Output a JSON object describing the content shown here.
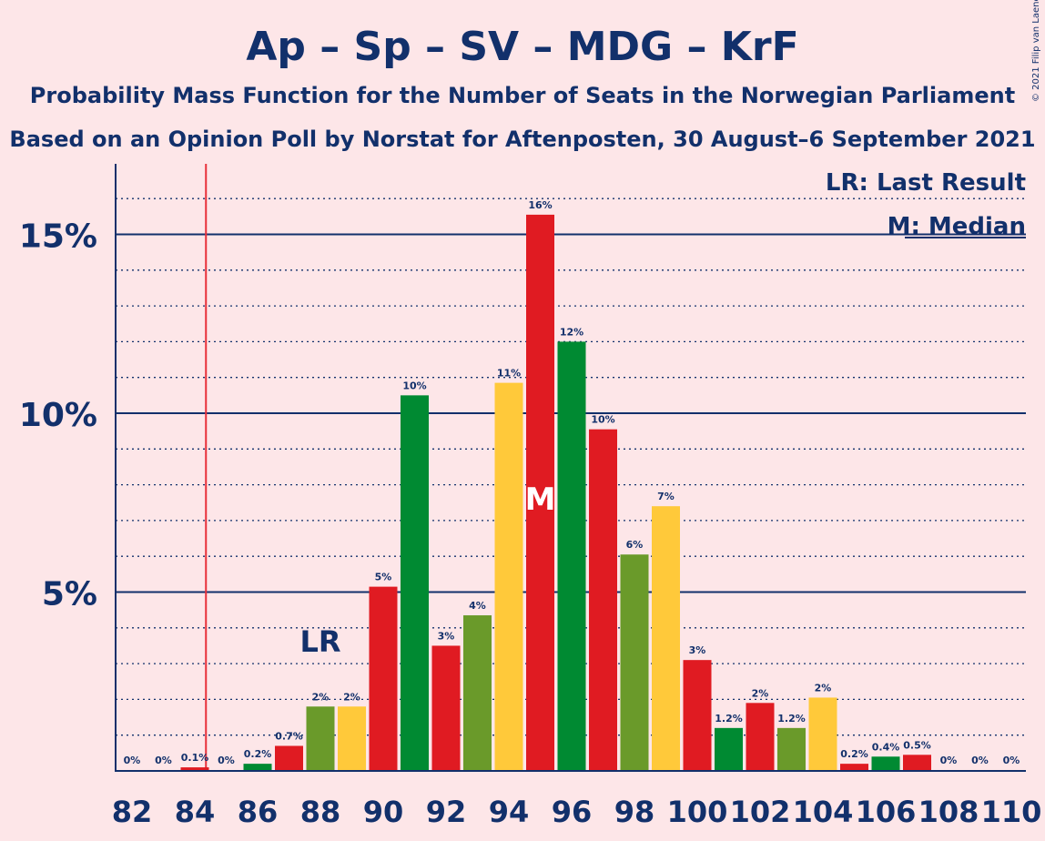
{
  "copyright": "© 2021 Filip van Laenen",
  "legend": {
    "lr": "LR: Last Result",
    "median": "M: Median"
  },
  "markers": {
    "last_result_label": "LR",
    "median_label": "M"
  },
  "colors": {
    "background": "#fde6e8",
    "axis": "#12306b",
    "last_result_line": "#e8303a",
    "red": "#e01b22",
    "green": "#008a32",
    "olive": "#6a9a2a",
    "yellow": "#ffc93a"
  },
  "chart_data": {
    "type": "bar",
    "title": "Ap – Sp – SV – MDG – KrF",
    "subtitle": "Probability Mass Function for the Number of Seats in the Norwegian Parliament",
    "subtitle2": "Based on an Opinion Poll by Norstat for Aftenposten, 30 August–6 September 2021",
    "xlabel": "",
    "ylabel": "",
    "x_ticks": [
      "82",
      "84",
      "86",
      "88",
      "90",
      "92",
      "94",
      "96",
      "98",
      "100",
      "102",
      "104",
      "106",
      "108",
      "110"
    ],
    "y_ticks": [
      "5%",
      "10%",
      "15%"
    ],
    "ylim": [
      0,
      17
    ],
    "grid": true,
    "legend_position": "top-right",
    "last_result": 85,
    "median": 95,
    "bars": [
      {
        "seats": 82,
        "value": 0,
        "label": "0%",
        "color": "red"
      },
      {
        "seats": 83,
        "value": 0,
        "label": "0%",
        "color": "red"
      },
      {
        "seats": 84,
        "value": 0.1,
        "label": "0.1%",
        "color": "red"
      },
      {
        "seats": 85,
        "value": 0,
        "label": "0%",
        "color": "red"
      },
      {
        "seats": 86,
        "value": 0.2,
        "label": "0.2%",
        "color": "green"
      },
      {
        "seats": 87,
        "value": 0.7,
        "label": "0.7%",
        "color": "red"
      },
      {
        "seats": 88,
        "value": 1.8,
        "label": "2%",
        "color": "olive"
      },
      {
        "seats": 89,
        "value": 1.8,
        "label": "2%",
        "color": "yellow"
      },
      {
        "seats": 90,
        "value": 5.15,
        "label": "5%",
        "color": "red"
      },
      {
        "seats": 91,
        "value": 10.5,
        "label": "10%",
        "color": "green"
      },
      {
        "seats": 92,
        "value": 3.5,
        "label": "3%",
        "color": "red"
      },
      {
        "seats": 93,
        "value": 4.35,
        "label": "4%",
        "color": "olive"
      },
      {
        "seats": 94,
        "value": 10.85,
        "label": "11%",
        "color": "yellow"
      },
      {
        "seats": 95,
        "value": 15.55,
        "label": "16%",
        "color": "red"
      },
      {
        "seats": 96,
        "value": 12.0,
        "label": "12%",
        "color": "green"
      },
      {
        "seats": 97,
        "value": 9.55,
        "label": "10%",
        "color": "red"
      },
      {
        "seats": 98,
        "value": 6.05,
        "label": "6%",
        "color": "olive"
      },
      {
        "seats": 99,
        "value": 7.4,
        "label": "7%",
        "color": "yellow"
      },
      {
        "seats": 100,
        "value": 3.1,
        "label": "3%",
        "color": "red"
      },
      {
        "seats": 101,
        "value": 1.2,
        "label": "1.2%",
        "color": "green"
      },
      {
        "seats": 102,
        "value": 1.9,
        "label": "2%",
        "color": "red"
      },
      {
        "seats": 103,
        "value": 1.2,
        "label": "1.2%",
        "color": "olive"
      },
      {
        "seats": 104,
        "value": 2.05,
        "label": "2%",
        "color": "yellow"
      },
      {
        "seats": 105,
        "value": 0.2,
        "label": "0.2%",
        "color": "red"
      },
      {
        "seats": 106,
        "value": 0.4,
        "label": "0.4%",
        "color": "green"
      },
      {
        "seats": 107,
        "value": 0.45,
        "label": "0.5%",
        "color": "red"
      },
      {
        "seats": 108,
        "value": 0,
        "label": "0%",
        "color": "olive"
      },
      {
        "seats": 109,
        "value": 0,
        "label": "0%",
        "color": "yellow"
      },
      {
        "seats": 110,
        "value": 0,
        "label": "0%",
        "color": "red"
      }
    ]
  }
}
